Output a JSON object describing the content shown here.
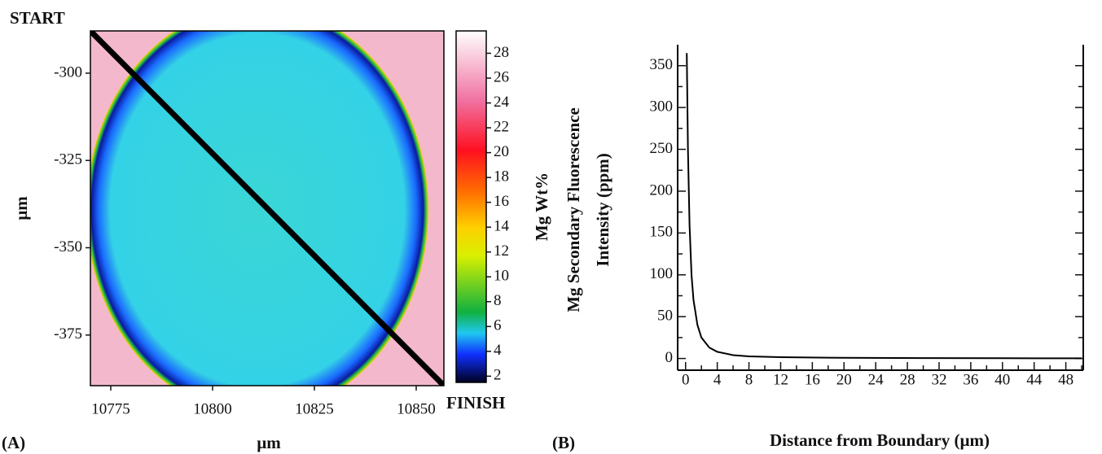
{
  "chart_data": [
    {
      "type": "heatmap",
      "panel_label": "(A)",
      "xlabel": "µm",
      "ylabel": "µm",
      "annotations": [
        "START",
        "FINISH"
      ],
      "xlim": [
        10770,
        10856.8
      ],
      "xticks": [
        10775,
        10800,
        10825,
        10850
      ],
      "ylim": [
        -389.5,
        -287.9
      ],
      "yticks": [
        -300,
        -325,
        -350,
        -375
      ],
      "colorbar_label": "Mg Wt%",
      "clim": [
        1.5,
        29.8
      ],
      "cticks": [
        2,
        4,
        6,
        8,
        10,
        12,
        14,
        16,
        18,
        20,
        22,
        24,
        26,
        28
      ]
    },
    {
      "type": "line",
      "panel_label": "(B)",
      "xlabel": "Distance from Boundary (µm)",
      "ylabel": [
        "Mg Secondary Fluorescence",
        "Intensity (ppm)"
      ],
      "x": [
        0.15,
        0.3,
        0.5,
        0.75,
        1,
        1.5,
        2,
        3,
        4,
        6,
        8,
        12,
        20,
        30,
        40,
        50
      ],
      "values": [
        365,
        250,
        160,
        100,
        70,
        40,
        25,
        13,
        8,
        4,
        2.5,
        1.5,
        0.8,
        0.5,
        0.3,
        0.2
      ],
      "color": "#000000",
      "xlim": [
        -1,
        50.2
      ],
      "xticks": [
        0,
        4,
        8,
        12,
        16,
        20,
        24,
        28,
        32,
        36,
        40,
        44,
        48
      ],
      "minor_xticks": [
        2,
        6,
        10,
        14,
        18,
        22,
        26,
        30,
        34,
        38,
        42,
        46,
        50
      ],
      "ylim": [
        -14,
        375
      ],
      "yticks": [
        0,
        50,
        100,
        150,
        200,
        250,
        300,
        350
      ],
      "minor_yticks": [
        25,
        75,
        125,
        175,
        225,
        275,
        325
      ]
    }
  ]
}
